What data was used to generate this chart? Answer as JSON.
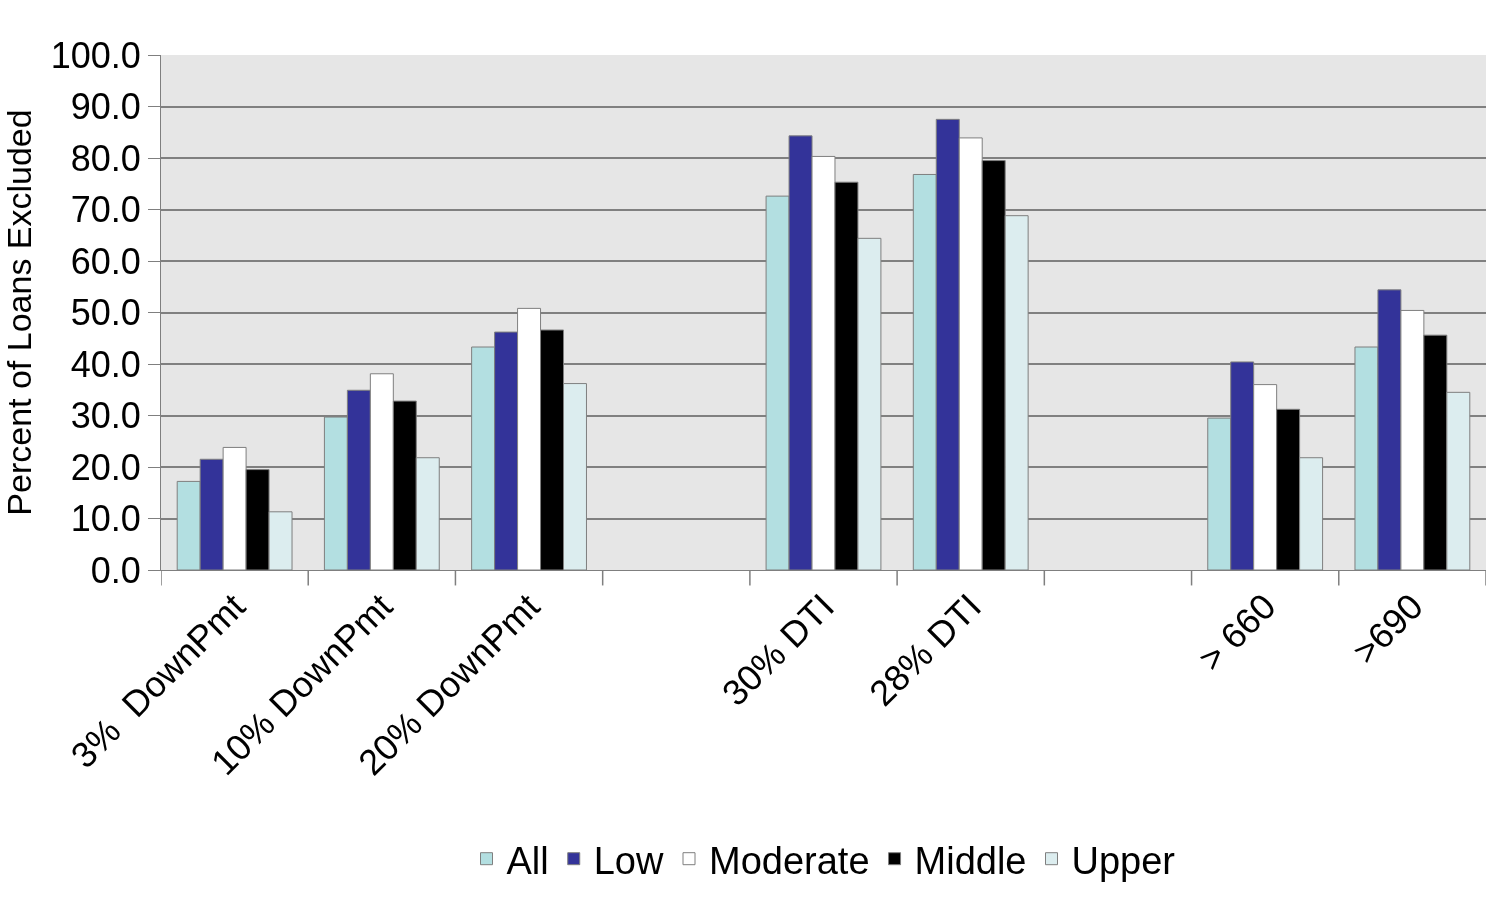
{
  "chart_data": {
    "type": "bar",
    "ylabel": "Percent of Loans Excluded",
    "categories": [
      "3%  DownPmt",
      "10% DownPmt",
      "20% DownPmt",
      null,
      "30% DTI",
      "28% DTI",
      null,
      "> 660",
      ">690"
    ],
    "series": [
      {
        "name": "All",
        "color": "#b3dfe1",
        "values": [
          17.2,
          29.7,
          43.3,
          null,
          72.6,
          76.8,
          null,
          29.5,
          43.3
        ]
      },
      {
        "name": "Low",
        "color": "#333399",
        "values": [
          21.5,
          34.9,
          46.2,
          null,
          84.3,
          87.5,
          null,
          40.4,
          54.4
        ]
      },
      {
        "name": "Moderate",
        "color": "#ffffff",
        "values": [
          23.8,
          38.1,
          50.8,
          null,
          80.3,
          83.9,
          null,
          36.0,
          50.4
        ]
      },
      {
        "name": "Middle",
        "color": "#000000",
        "values": [
          19.5,
          32.8,
          46.6,
          null,
          75.3,
          79.5,
          null,
          31.2,
          45.6
        ]
      },
      {
        "name": "Upper",
        "color": "#dcedef",
        "values": [
          11.3,
          21.8,
          36.2,
          null,
          64.4,
          68.8,
          null,
          21.8,
          34.5
        ]
      }
    ],
    "ylim": [
      0,
      100
    ],
    "yticks": [
      {
        "value": 0,
        "label": "0.0"
      },
      {
        "value": 10,
        "label": "10.0"
      },
      {
        "value": 20,
        "label": "20.0"
      },
      {
        "value": 30,
        "label": "30.0"
      },
      {
        "value": 40,
        "label": "40.0"
      },
      {
        "value": 50,
        "label": "50.0"
      },
      {
        "value": 60,
        "label": "60.0"
      },
      {
        "value": 70,
        "label": "70.0"
      },
      {
        "value": 80,
        "label": "80.0"
      },
      {
        "value": 90,
        "label": "90.0"
      },
      {
        "value": 100,
        "label": "100.0"
      }
    ],
    "grid": "y",
    "legend": "bottom"
  }
}
